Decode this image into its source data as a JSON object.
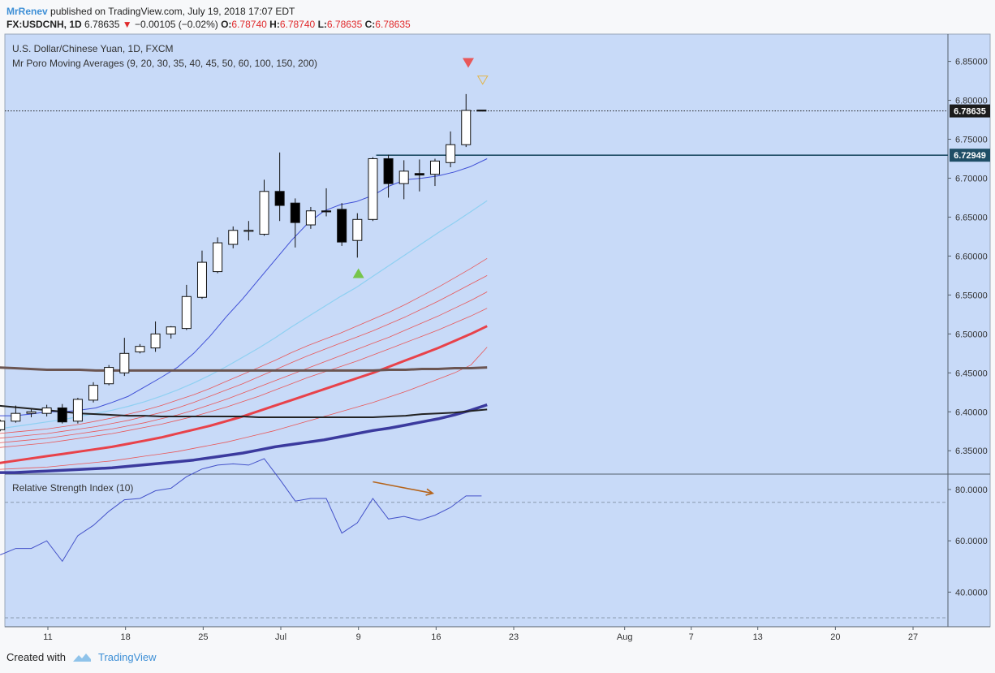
{
  "header": {
    "author": "MrRenev",
    "published": "published on TradingView.com, July 19, 2018 17:07 EDT",
    "symbol": "FX:USDCNH, 1D",
    "last": "6.78635",
    "change_arrow": "▼",
    "change": "−0.00105 (−0.02%)",
    "o_label": "O:",
    "o_val": "6.78740",
    "h_label": "H:",
    "h_val": "6.78740",
    "l_label": "L:",
    "l_val": "6.78635",
    "c_label": "C:",
    "c_val": "6.78635"
  },
  "legend": {
    "instrument": "U.S. Dollar/Chinese Yuan, 1D, FXCM",
    "indicator": "Mr Poro Moving Averages (9, 20, 30, 35, 40, 45, 50, 60, 100, 150, 200)",
    "rsi": "Relative Strength Index (10)"
  },
  "footer": {
    "created": "Created with",
    "brand": "TradingView"
  },
  "colors": {
    "panel_bg": "#c8daf8",
    "up": "#ffffff",
    "down": "#000000",
    "ma9": "#3f4fd6",
    "ma20": "#8fd0f2",
    "ma_thin": "#e8585a",
    "ma_bold": "#e8424a",
    "ma100": "#3b3a9e",
    "ma150": "#222222",
    "ma200": "#6b5552",
    "rsi": "#4452c9",
    "arrow": "#b5651d"
  },
  "chart_data": [
    {
      "type": "candlestick",
      "title": "U.S. Dollar/Chinese Yuan, 1D, FXCM",
      "ylim": [
        6.32,
        6.885
      ],
      "y_ticks": [
        "6.35000",
        "6.40000",
        "6.45000",
        "6.50000",
        "6.55000",
        "6.60000",
        "6.65000",
        "6.70000",
        "6.75000",
        "6.80000",
        "6.85000"
      ],
      "x_ticks": [
        {
          "label": "11",
          "day": 11
        },
        {
          "label": "18",
          "day": 18
        },
        {
          "label": "25",
          "day": 25
        },
        {
          "label": "Jul",
          "day": 32
        },
        {
          "label": "9",
          "day": 39
        },
        {
          "label": "16",
          "day": 46
        },
        {
          "label": "23",
          "day": 53
        },
        {
          "label": "Aug",
          "day": 63
        },
        {
          "label": "7",
          "day": 69
        },
        {
          "label": "13",
          "day": 75
        },
        {
          "label": "20",
          "day": 82
        },
        {
          "label": "27",
          "day": 89
        }
      ],
      "candles": [
        {
          "day": 6.7,
          "o": 6.377,
          "h": 6.39,
          "l": 6.375,
          "c": 6.388
        },
        {
          "day": 8.1,
          "o": 6.388,
          "h": 6.408,
          "l": 6.386,
          "c": 6.398
        },
        {
          "day": 9.5,
          "o": 6.398,
          "h": 6.403,
          "l": 6.393,
          "c": 6.4
        },
        {
          "day": 10.9,
          "o": 6.398,
          "h": 6.409,
          "l": 6.394,
          "c": 6.405
        },
        {
          "day": 12.3,
          "o": 6.405,
          "h": 6.41,
          "l": 6.385,
          "c": 6.387
        },
        {
          "day": 13.7,
          "o": 6.388,
          "h": 6.418,
          "l": 6.385,
          "c": 6.416
        },
        {
          "day": 15.1,
          "o": 6.415,
          "h": 6.438,
          "l": 6.412,
          "c": 6.434
        },
        {
          "day": 16.5,
          "o": 6.436,
          "h": 6.46,
          "l": 6.434,
          "c": 6.457
        },
        {
          "day": 17.9,
          "o": 6.45,
          "h": 6.495,
          "l": 6.446,
          "c": 6.475
        },
        {
          "day": 19.3,
          "o": 6.477,
          "h": 6.487,
          "l": 6.475,
          "c": 6.484
        },
        {
          "day": 20.7,
          "o": 6.482,
          "h": 6.516,
          "l": 6.477,
          "c": 6.5
        },
        {
          "day": 22.1,
          "o": 6.5,
          "h": 6.51,
          "l": 6.494,
          "c": 6.509
        },
        {
          "day": 23.5,
          "o": 6.507,
          "h": 6.563,
          "l": 6.505,
          "c": 6.548
        },
        {
          "day": 24.9,
          "o": 6.547,
          "h": 6.607,
          "l": 6.545,
          "c": 6.592
        },
        {
          "day": 26.3,
          "o": 6.58,
          "h": 6.624,
          "l": 6.578,
          "c": 6.617
        },
        {
          "day": 27.7,
          "o": 6.615,
          "h": 6.638,
          "l": 6.61,
          "c": 6.633
        },
        {
          "day": 29.1,
          "o": 6.633,
          "h": 6.645,
          "l": 6.62,
          "c": 6.633
        },
        {
          "day": 30.5,
          "o": 6.628,
          "h": 6.698,
          "l": 6.626,
          "c": 6.683
        },
        {
          "day": 31.9,
          "o": 6.683,
          "h": 6.733,
          "l": 6.645,
          "c": 6.665
        },
        {
          "day": 33.3,
          "o": 6.668,
          "h": 6.674,
          "l": 6.611,
          "c": 6.643
        },
        {
          "day": 34.7,
          "o": 6.64,
          "h": 6.663,
          "l": 6.635,
          "c": 6.658
        },
        {
          "day": 36.1,
          "o": 6.658,
          "h": 6.687,
          "l": 6.651,
          "c": 6.657
        },
        {
          "day": 37.5,
          "o": 6.66,
          "h": 6.668,
          "l": 6.613,
          "c": 6.618
        },
        {
          "day": 38.9,
          "o": 6.62,
          "h": 6.655,
          "l": 6.598,
          "c": 6.647
        },
        {
          "day": 40.3,
          "o": 6.647,
          "h": 6.727,
          "l": 6.645,
          "c": 6.725
        },
        {
          "day": 41.7,
          "o": 6.725,
          "h": 6.73,
          "l": 6.675,
          "c": 6.693
        },
        {
          "day": 43.1,
          "o": 6.693,
          "h": 6.723,
          "l": 6.673,
          "c": 6.709
        },
        {
          "day": 44.5,
          "o": 6.706,
          "h": 6.724,
          "l": 6.683,
          "c": 6.704
        },
        {
          "day": 45.9,
          "o": 6.705,
          "h": 6.725,
          "l": 6.69,
          "c": 6.722
        },
        {
          "day": 47.3,
          "o": 6.72,
          "h": 6.76,
          "l": 6.714,
          "c": 6.743
        },
        {
          "day": 48.7,
          "o": 6.743,
          "h": 6.808,
          "l": 6.74,
          "c": 6.787
        },
        {
          "day": 50.1,
          "o": 6.7874,
          "h": 6.7874,
          "l": 6.7863,
          "c": 6.78635
        }
      ],
      "price_labels": [
        {
          "value": 6.78635,
          "text": "6.78635"
        },
        {
          "value": 6.72949,
          "text": "6.72949"
        }
      ],
      "horizontal_line": 6.72949,
      "signals": [
        {
          "type": "sell",
          "day": 48.9,
          "value": 6.848
        },
        {
          "type": "sell-outline",
          "day": 50.2,
          "value": 6.826
        },
        {
          "type": "buy",
          "day": 39.0,
          "value": 6.578
        }
      ],
      "moving_averages": [
        {
          "name": "MA 9",
          "day_start": 6.5,
          "values": [
            6.395,
            6.395,
            6.397,
            6.4,
            6.4,
            6.402,
            6.405,
            6.412,
            6.42,
            6.432,
            6.444,
            6.457,
            6.475,
            6.497,
            6.522,
            6.545,
            6.57,
            6.595,
            6.62,
            6.642,
            6.658,
            6.666,
            6.67,
            6.678,
            6.69,
            6.698,
            6.7,
            6.703,
            6.708,
            6.715,
            6.725
          ]
        },
        {
          "name": "MA 20",
          "day_start": 6.5,
          "values": [
            6.378,
            6.381,
            6.384,
            6.387,
            6.39,
            6.394,
            6.398,
            6.402,
            6.407,
            6.413,
            6.42,
            6.428,
            6.437,
            6.447,
            6.458,
            6.47,
            6.482,
            6.495,
            6.509,
            6.522,
            6.535,
            6.548,
            6.56,
            6.574,
            6.588,
            6.602,
            6.616,
            6.63,
            6.643,
            6.657,
            6.671
          ]
        },
        {
          "name": "MA 30",
          "day_start": 6.5,
          "values": [
            6.372,
            6.374,
            6.376,
            6.378,
            6.381,
            6.384,
            6.388,
            6.392,
            6.397,
            6.402,
            6.408,
            6.415,
            6.422,
            6.43,
            6.439,
            6.448,
            6.457,
            6.466,
            6.476,
            6.485,
            6.493,
            6.501,
            6.51,
            6.519,
            6.528,
            6.538,
            6.549,
            6.56,
            6.572,
            6.584,
            6.597
          ]
        },
        {
          "name": "MA 35",
          "day_start": 6.5,
          "values": [
            6.366,
            6.368,
            6.37,
            6.372,
            6.375,
            6.378,
            6.381,
            6.385,
            6.389,
            6.394,
            6.399,
            6.405,
            6.412,
            6.42,
            6.428,
            6.436,
            6.445,
            6.454,
            6.463,
            6.472,
            6.48,
            6.488,
            6.496,
            6.504,
            6.513,
            6.522,
            6.532,
            6.542,
            6.553,
            6.564,
            6.575
          ]
        },
        {
          "name": "MA 40",
          "day_start": 6.5,
          "values": [
            6.36,
            6.362,
            6.364,
            6.366,
            6.369,
            6.372,
            6.375,
            6.378,
            6.382,
            6.386,
            6.391,
            6.396,
            6.402,
            6.409,
            6.416,
            6.424,
            6.432,
            6.44,
            6.448,
            6.456,
            6.464,
            6.472,
            6.48,
            6.488,
            6.496,
            6.505,
            6.514,
            6.523,
            6.533,
            6.543,
            6.554
          ]
        },
        {
          "name": "MA 45",
          "day_start": 6.5,
          "values": [
            6.354,
            6.356,
            6.358,
            6.36,
            6.363,
            6.366,
            6.369,
            6.372,
            6.376,
            6.38,
            6.384,
            6.389,
            6.394,
            6.4,
            6.406,
            6.413,
            6.42,
            6.428,
            6.436,
            6.444,
            6.451,
            6.458,
            6.465,
            6.473,
            6.481,
            6.489,
            6.497,
            6.505,
            6.514,
            6.523,
            6.533
          ]
        },
        {
          "name": "MA 50",
          "day_start": 6.5,
          "values": [
            6.334,
            6.337,
            6.34,
            6.343,
            6.346,
            6.349,
            6.352,
            6.355,
            6.359,
            6.363,
            6.367,
            6.372,
            6.377,
            6.382,
            6.388,
            6.394,
            6.401,
            6.408,
            6.415,
            6.422,
            6.429,
            6.436,
            6.443,
            6.45,
            6.458,
            6.466,
            6.474,
            6.482,
            6.491,
            6.5,
            6.51
          ]
        },
        {
          "name": "MA 60",
          "day_start": 6.5,
          "values": [
            6.326,
            6.327,
            6.328,
            6.329,
            6.331,
            6.333,
            6.335,
            6.337,
            6.34,
            6.343,
            6.346,
            6.349,
            6.353,
            6.357,
            6.361,
            6.366,
            6.371,
            6.376,
            6.382,
            6.388,
            6.394,
            6.4,
            6.406,
            6.412,
            6.419,
            6.426,
            6.434,
            6.442,
            6.45,
            6.46,
            6.483
          ]
        },
        {
          "name": "MA 100",
          "day_start": 6.5,
          "values": [
            6.322,
            6.322,
            6.323,
            6.324,
            6.325,
            6.326,
            6.327,
            6.328,
            6.33,
            6.332,
            6.334,
            6.336,
            6.338,
            6.341,
            6.344,
            6.347,
            6.351,
            6.355,
            6.358,
            6.361,
            6.364,
            6.368,
            6.372,
            6.376,
            6.379,
            6.383,
            6.387,
            6.391,
            6.396,
            6.402,
            6.409
          ]
        },
        {
          "name": "MA 150",
          "day_start": 6.5,
          "values": [
            6.408,
            6.406,
            6.404,
            6.402,
            6.4,
            6.398,
            6.397,
            6.396,
            6.395,
            6.395,
            6.394,
            6.394,
            6.394,
            6.394,
            6.394,
            6.394,
            6.393,
            6.393,
            6.393,
            6.393,
            6.393,
            6.393,
            6.393,
            6.393,
            6.394,
            6.395,
            6.397,
            6.398,
            6.399,
            6.401,
            6.403
          ]
        },
        {
          "name": "MA 200",
          "day_start": 6.5,
          "values": [
            6.457,
            6.456,
            6.455,
            6.454,
            6.454,
            6.454,
            6.453,
            6.453,
            6.453,
            6.453,
            6.453,
            6.453,
            6.453,
            6.453,
            6.453,
            6.453,
            6.453,
            6.453,
            6.453,
            6.453,
            6.453,
            6.453,
            6.453,
            6.453,
            6.454,
            6.454,
            6.455,
            6.455,
            6.456,
            6.456,
            6.457
          ]
        }
      ]
    },
    {
      "type": "line",
      "title": "Relative Strength Index (10)",
      "ylim": [
        26.5,
        86
      ],
      "y_ticks": [
        "40.0000",
        "60.0000",
        "80.0000"
      ],
      "band_levels": [
        75,
        30
      ],
      "series": [
        {
          "name": "RSI 10",
          "x": [
            6.7,
            8.1,
            9.5,
            10.9,
            12.3,
            13.7,
            15.1,
            16.5,
            17.9,
            19.3,
            20.7,
            22.1,
            23.5,
            24.9,
            26.3,
            27.7,
            29.1,
            30.5,
            31.9,
            33.3,
            34.7,
            36.1,
            37.5,
            38.9,
            40.3,
            41.7,
            43.1,
            44.5,
            45.9,
            47.3,
            48.7,
            50.1
          ],
          "values": [
            54.5,
            57.0,
            57.0,
            60.0,
            52.0,
            62.0,
            66.0,
            71.5,
            76.0,
            76.5,
            79.5,
            80.5,
            85.0,
            88.0,
            89.5,
            90.0,
            89.5,
            92.0,
            84.0,
            75.5,
            76.5,
            76.5,
            63.0,
            67.0,
            76.5,
            68.5,
            69.5,
            68.0,
            70.0,
            73.0,
            77.5,
            77.5
          ]
        }
      ],
      "annotation": {
        "type": "arrow",
        "from": {
          "day": 40.3,
          "value": 83
        },
        "to": {
          "day": 45.7,
          "value": 78.5
        }
      }
    }
  ]
}
